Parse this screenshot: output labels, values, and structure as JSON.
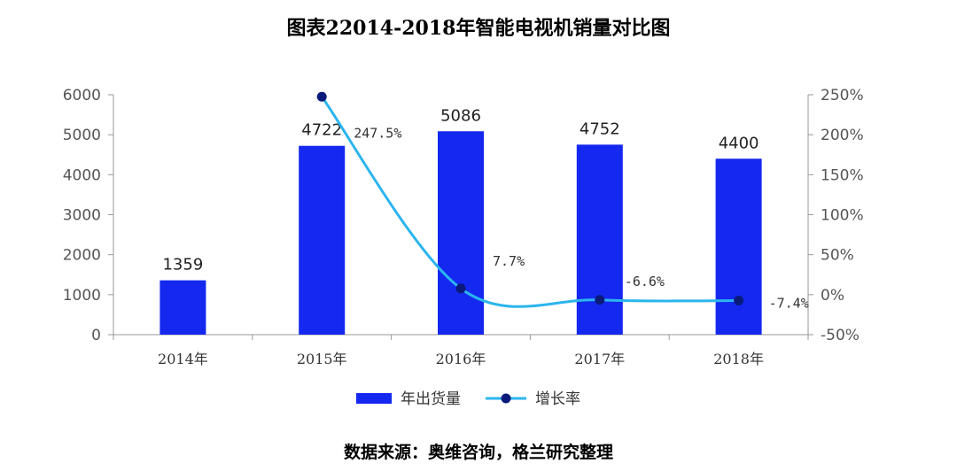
{
  "title": "图表22014-2018年智能电视机销量对比图",
  "source": "数据来源：奥维咨询，格兰研究整理",
  "colors": {
    "bar": "#1428F0",
    "line": "#2BB5EE",
    "marker": "#0A1A7A",
    "axis": "#999999"
  },
  "chart_data": {
    "type": "bar",
    "categories": [
      "2014年",
      "2015年",
      "2016年",
      "2017年",
      "2018年"
    ],
    "series": [
      {
        "name": "年出货量",
        "type": "bar",
        "axis": "left",
        "values": [
          1359,
          4722,
          5086,
          4752,
          4400
        ],
        "labels": [
          "1359",
          "4722",
          "5086",
          "4752",
          "4400"
        ]
      },
      {
        "name": "增长率",
        "type": "line",
        "axis": "right",
        "smooth": true,
        "values": [
          null,
          247.5,
          7.7,
          -6.6,
          -7.4
        ],
        "labels": [
          "",
          "247.5%",
          "7.7%",
          "-6.6%",
          "-7.4%"
        ]
      }
    ],
    "y_left": {
      "min": 0,
      "max": 6000,
      "step": 1000,
      "ticks": [
        "0",
        "1000",
        "2000",
        "3000",
        "4000",
        "5000",
        "6000"
      ]
    },
    "y_right": {
      "min": -50,
      "max": 250,
      "step": 50,
      "ticks": [
        "-50%",
        "0%",
        "50%",
        "100%",
        "150%",
        "200%",
        "250%"
      ]
    },
    "grid": false,
    "legend": {
      "position": "bottom",
      "items": [
        "年出货量",
        "增长率"
      ]
    }
  }
}
